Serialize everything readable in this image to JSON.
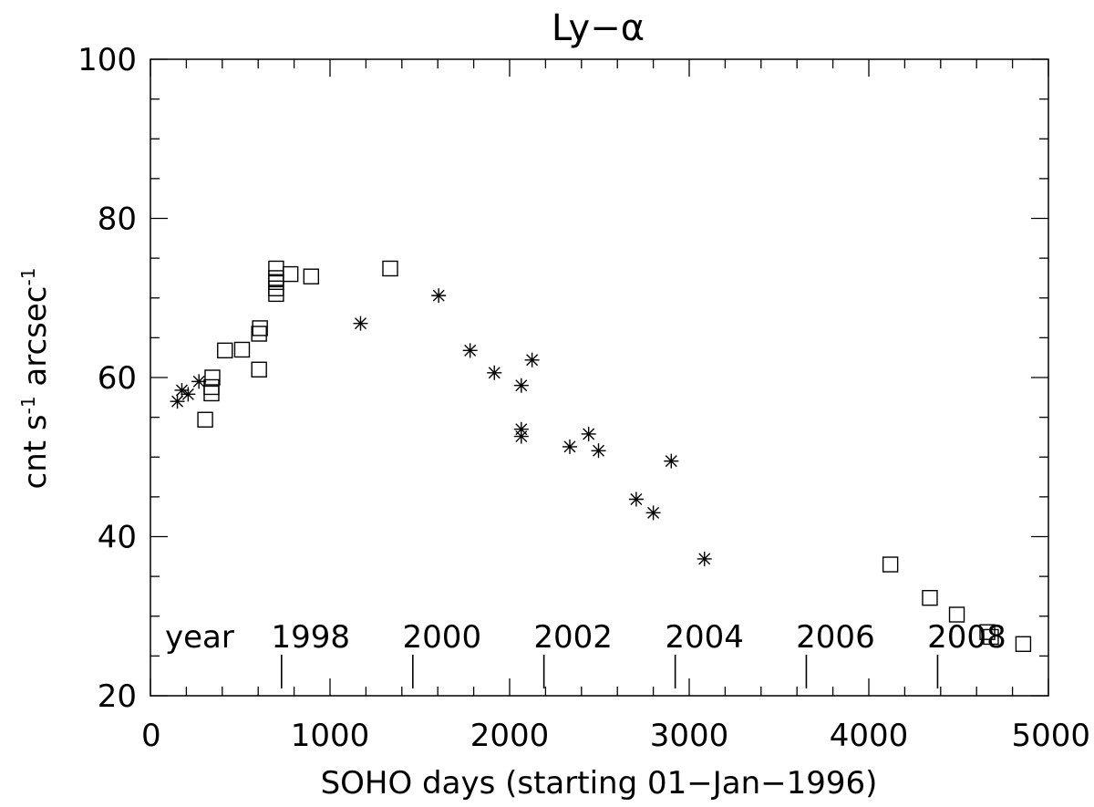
{
  "chart_data": {
    "type": "scatter",
    "title": "Ly−α",
    "xlabel": "SOHO days (starting 01−Jan−1996)",
    "ylabel_parts": [
      "cnt s",
      "-1",
      " arcsec",
      "-1"
    ],
    "xlim": [
      0,
      5000
    ],
    "ylim": [
      20,
      100
    ],
    "x_ticks": [
      0,
      1000,
      2000,
      3000,
      4000,
      5000
    ],
    "y_ticks": [
      20,
      40,
      60,
      80,
      100
    ],
    "grid": false,
    "year_prefix": "year",
    "year_marks": [
      {
        "label": "1998",
        "day": 730
      },
      {
        "label": "2000",
        "day": 1461
      },
      {
        "label": "2002",
        "day": 2191
      },
      {
        "label": "2004",
        "day": 2922
      },
      {
        "label": "2006",
        "day": 3652
      },
      {
        "label": "2008",
        "day": 4383
      }
    ],
    "series": [
      {
        "marker": "square",
        "points": [
          [
            305,
            54.7
          ],
          [
            340,
            58.0
          ],
          [
            340,
            58.8
          ],
          [
            345,
            60.0
          ],
          [
            415,
            63.4
          ],
          [
            510,
            63.5
          ],
          [
            605,
            61.0
          ],
          [
            605,
            65.5
          ],
          [
            610,
            66.2
          ],
          [
            700,
            70.5
          ],
          [
            700,
            71.2
          ],
          [
            700,
            72.0
          ],
          [
            700,
            72.5
          ],
          [
            700,
            73.7
          ],
          [
            780,
            73.0
          ],
          [
            895,
            72.7
          ],
          [
            1335,
            73.7
          ],
          [
            4120,
            36.5
          ],
          [
            4340,
            32.3
          ],
          [
            4490,
            30.2
          ],
          [
            4660,
            28.0
          ],
          [
            4680,
            27.4
          ],
          [
            4860,
            26.5
          ]
        ]
      },
      {
        "marker": "asterisk",
        "points": [
          [
            150,
            57.0
          ],
          [
            175,
            58.4
          ],
          [
            210,
            57.9
          ],
          [
            270,
            59.5
          ],
          [
            1170,
            66.8
          ],
          [
            1605,
            70.3
          ],
          [
            1780,
            63.4
          ],
          [
            1915,
            60.6
          ],
          [
            2065,
            59.0
          ],
          [
            2065,
            53.5
          ],
          [
            2065,
            52.6
          ],
          [
            2125,
            62.2
          ],
          [
            2335,
            51.3
          ],
          [
            2440,
            52.9
          ],
          [
            2495,
            50.8
          ],
          [
            2705,
            44.7
          ],
          [
            2800,
            43.0
          ],
          [
            2900,
            49.5
          ],
          [
            3085,
            37.2
          ]
        ]
      }
    ]
  }
}
